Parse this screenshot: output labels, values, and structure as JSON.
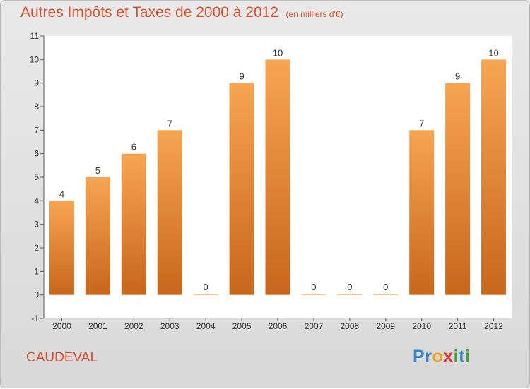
{
  "header": {
    "title": "Autres Impôts et Taxes de 2000 à 2012",
    "subtitle": "(en milliers d'€)"
  },
  "footer": {
    "commune": "CAUDEVAL",
    "logo_letters": [
      {
        "ch": "P",
        "color": "#3b86c8"
      },
      {
        "ch": "r",
        "color": "#3b86c8"
      },
      {
        "ch": "o",
        "color": "#f0a020"
      },
      {
        "ch": "x",
        "color": "#e03a2f"
      },
      {
        "ch": "i",
        "color": "#3fa535"
      },
      {
        "ch": "t",
        "color": "#3b86c8"
      },
      {
        "ch": "i",
        "color": "#3fa535"
      }
    ]
  },
  "chart_data": {
    "type": "bar",
    "title": "Autres Impôts et Taxes de 2000 à 2012",
    "subtitle": "(en milliers d'€)",
    "categories": [
      "2000",
      "2001",
      "2002",
      "2003",
      "2004",
      "2005",
      "2006",
      "2007",
      "2008",
      "2009",
      "2010",
      "2011",
      "2012"
    ],
    "values": [
      4,
      5,
      6,
      7,
      0,
      9,
      10,
      0,
      0,
      0,
      7,
      9,
      10
    ],
    "ylim": [
      -1,
      11
    ],
    "yticks": [
      "-1",
      "0",
      "1",
      "2",
      "3",
      "4",
      "5",
      "6",
      "7",
      "8",
      "9",
      "10",
      "11"
    ],
    "grid": false,
    "colors": {
      "bar_light": "#f7a552",
      "bar_dark": "#c8661c",
      "plot_bg": "#ffffff",
      "text": "#333333",
      "title": "#d6522e"
    }
  }
}
